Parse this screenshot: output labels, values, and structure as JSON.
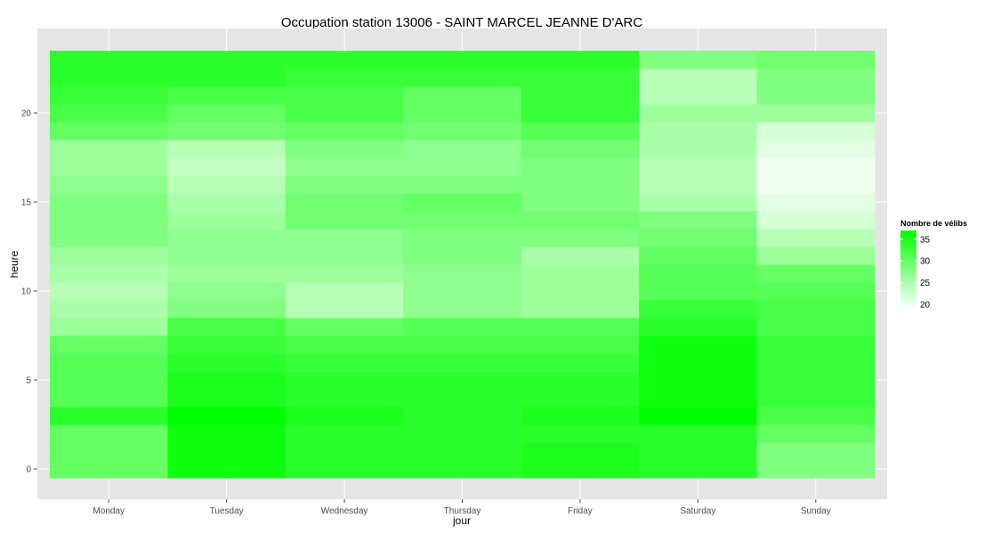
{
  "chart_data": {
    "type": "heatmap",
    "title": "Occupation station 13006 - SAINT MARCEL JEANNE D'ARC",
    "xlabel": "jour",
    "ylabel": "heure",
    "x_categories": [
      "Monday",
      "Tuesday",
      "Wednesday",
      "Thursday",
      "Friday",
      "Saturday",
      "Sunday"
    ],
    "y_values": [
      0,
      1,
      2,
      3,
      4,
      5,
      6,
      7,
      8,
      9,
      10,
      11,
      12,
      13,
      14,
      15,
      16,
      17,
      18,
      19,
      20,
      21,
      22,
      23
    ],
    "y_ticks": [
      0,
      5,
      10,
      15,
      20
    ],
    "y_tick_labels": [
      "0",
      "5",
      "10",
      "15",
      "20"
    ],
    "ylim": [
      -0.5,
      23.5
    ],
    "grid": true,
    "legend": {
      "title": "Nombre de vélibs",
      "position": "right",
      "low": 19,
      "high": 37,
      "low_color": "#ffffff",
      "high_color": "#00ff00",
      "ticks": [
        20,
        25,
        30,
        35
      ],
      "tick_labels": [
        "20",
        "25",
        "30",
        "35"
      ]
    },
    "values": [
      [
        30,
        30,
        30,
        34,
        31,
        31,
        31,
        30,
        26,
        25,
        24,
        25,
        26,
        28,
        28,
        28,
        27,
        26,
        26,
        30,
        32,
        33,
        34,
        34
      ],
      [
        36,
        36,
        36,
        37,
        35,
        35,
        34,
        33,
        32,
        28,
        27,
        26,
        27,
        27,
        26,
        25,
        24,
        23,
        24,
        29,
        30,
        32,
        34,
        34
      ],
      [
        34,
        34,
        34,
        35,
        34,
        34,
        33,
        32,
        30,
        24,
        24,
        26,
        27,
        27,
        29,
        29,
        28,
        27,
        28,
        30,
        32,
        32,
        33,
        34
      ],
      [
        34,
        34,
        34,
        34,
        34,
        34,
        33,
        32,
        31,
        27,
        27,
        27,
        28,
        28,
        29,
        30,
        28,
        27,
        27,
        29,
        30,
        30,
        33,
        34
      ],
      [
        35,
        35,
        34,
        35,
        34,
        34,
        33,
        32,
        31,
        26,
        26,
        26,
        25,
        28,
        29,
        28,
        28,
        28,
        29,
        31,
        33,
        33,
        33,
        34
      ],
      [
        34,
        34,
        34,
        37,
        36,
        36,
        36,
        36,
        34,
        33,
        31,
        31,
        30,
        29,
        28,
        25,
        24,
        24,
        25,
        25,
        26,
        24,
        24,
        28
      ],
      [
        28,
        28,
        30,
        32,
        33,
        33,
        33,
        33,
        32,
        32,
        31,
        30,
        26,
        24,
        22,
        21,
        20,
        20,
        21,
        22,
        26,
        28,
        28,
        29
      ]
    ]
  }
}
